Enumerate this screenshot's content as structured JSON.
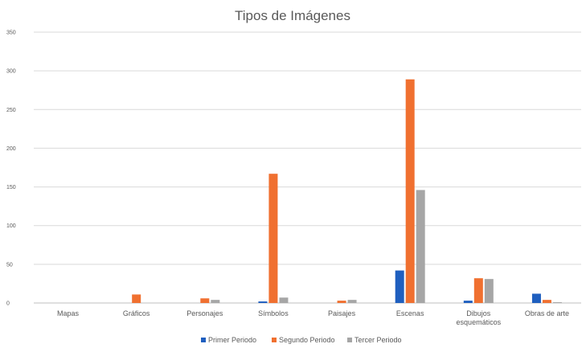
{
  "chart_data": {
    "type": "bar",
    "title": "Tipos de Imágenes",
    "xlabel": "",
    "ylabel": "",
    "ylim": [
      0,
      350
    ],
    "yticks": [
      0,
      50,
      100,
      150,
      200,
      250,
      300,
      350
    ],
    "grid": true,
    "legend_position": "bottom",
    "categories": [
      [
        "Mapas"
      ],
      [
        "Gráficos"
      ],
      [
        "Personajes"
      ],
      [
        "Símbolos"
      ],
      [
        "Paisajes"
      ],
      [
        "Escenas"
      ],
      [
        "Dibujos",
        "esquemáticos"
      ],
      [
        "Obras de arte"
      ]
    ],
    "series": [
      {
        "name": "Primer Periodo",
        "color": "#1f5fbf",
        "values": [
          0,
          0,
          0,
          2,
          0,
          42,
          3,
          12
        ]
      },
      {
        "name": "Segundo Periodo",
        "color": "#f07030",
        "values": [
          0,
          11,
          6,
          167,
          3,
          289,
          32,
          4
        ]
      },
      {
        "name": "Tercer Periodo",
        "color": "#a6a6a6",
        "values": [
          0,
          0,
          4,
          7,
          4,
          146,
          31,
          1
        ]
      }
    ]
  }
}
